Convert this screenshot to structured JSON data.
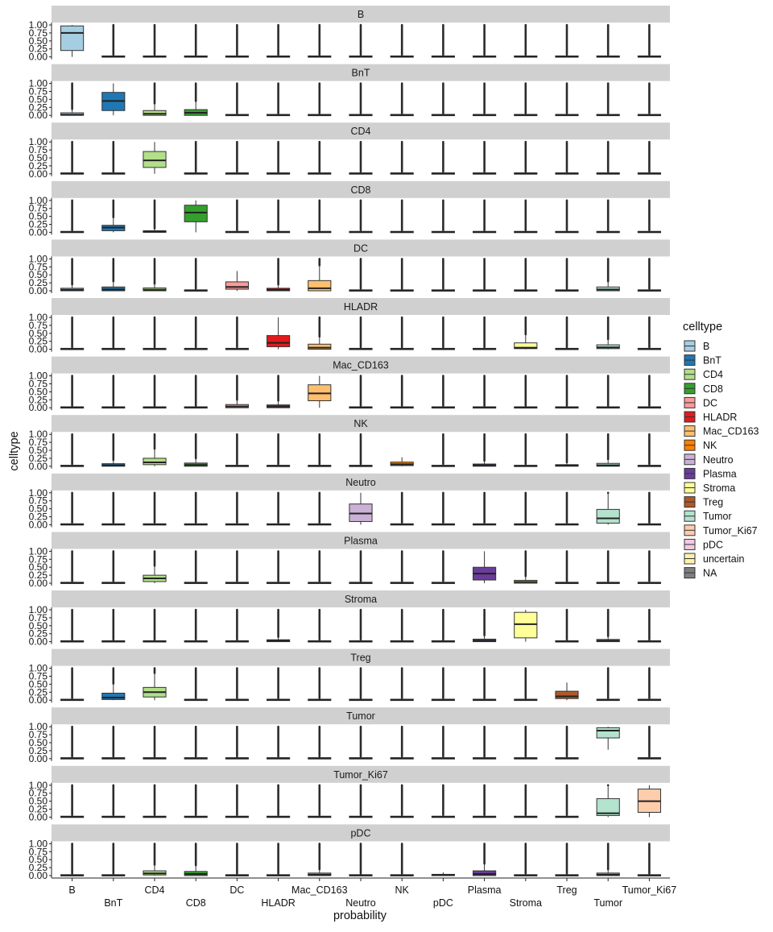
{
  "chart_data": {
    "type": "boxplot",
    "xlabel": "probability",
    "ylabel": "celltype",
    "categories": [
      "B",
      "BnT",
      "CD4",
      "CD8",
      "DC",
      "HLADR",
      "Mac_CD163",
      "Neutro",
      "NK",
      "pDC",
      "Plasma",
      "Stroma",
      "Treg",
      "Tumor",
      "Tumor_Ki67"
    ],
    "yticks": [
      "0.00",
      "0.25",
      "0.50",
      "0.75",
      "1.00"
    ],
    "ylim": [
      0,
      1
    ],
    "legend": {
      "title": "celltype",
      "position": "right",
      "entries": [
        {
          "label": "B",
          "color": "#A6CEE3"
        },
        {
          "label": "BnT",
          "color": "#1F78B4"
        },
        {
          "label": "CD4",
          "color": "#B2DF8A"
        },
        {
          "label": "CD8",
          "color": "#33A02C"
        },
        {
          "label": "DC",
          "color": "#FB9A99"
        },
        {
          "label": "HLADR",
          "color": "#E31A1C"
        },
        {
          "label": "Mac_CD163",
          "color": "#FDBF6F"
        },
        {
          "label": "NK",
          "color": "#FF7F00"
        },
        {
          "label": "Neutro",
          "color": "#CAB2D6"
        },
        {
          "label": "Plasma",
          "color": "#6A3D9A"
        },
        {
          "label": "Stroma",
          "color": "#FFFF99"
        },
        {
          "label": "Treg",
          "color": "#B15928"
        },
        {
          "label": "Tumor",
          "color": "#B3E2CD"
        },
        {
          "label": "Tumor_Ki67",
          "color": "#FDCDAC"
        },
        {
          "label": "pDC",
          "color": "#F4CAE4"
        },
        {
          "label": "uncertain",
          "color": "#FFF2AE"
        },
        {
          "label": "NA",
          "color": "#7F7F7F"
        }
      ]
    },
    "panels": [
      {
        "label": "B",
        "highlight": {
          "category": "B",
          "color": "#A6CEE3",
          "q1": 0.2,
          "median": 0.75,
          "q3": 0.97,
          "wmin": 0.0,
          "wmax": 1.0
        }
      },
      {
        "label": "BnT",
        "highlight": {
          "category": "BnT",
          "color": "#1F78B4",
          "q1": 0.15,
          "median": 0.45,
          "q3": 0.72,
          "wmin": 0.0,
          "wmax": 1.0
        }
      },
      {
        "label": "CD4",
        "highlight": {
          "category": "CD4",
          "color": "#B2DF8A",
          "q1": 0.2,
          "median": 0.42,
          "q3": 0.7,
          "wmin": 0.0,
          "wmax": 1.0
        }
      },
      {
        "label": "CD8",
        "highlight": {
          "category": "CD8",
          "color": "#33A02C",
          "q1": 0.33,
          "median": 0.62,
          "q3": 0.85,
          "wmin": 0.0,
          "wmax": 1.0
        }
      },
      {
        "label": "DC",
        "highlight": {
          "category": "DC",
          "color": "#FB9A99",
          "q1": 0.05,
          "median": 0.12,
          "q3": 0.28,
          "wmin": 0.0,
          "wmax": 0.62
        }
      },
      {
        "label": "HLADR",
        "highlight": {
          "category": "HLADR",
          "color": "#E31A1C",
          "q1": 0.08,
          "median": 0.2,
          "q3": 0.43,
          "wmin": 0.0,
          "wmax": 1.0
        }
      },
      {
        "label": "Mac_CD163",
        "highlight": {
          "category": "Mac_CD163",
          "color": "#FDBF6F",
          "q1": 0.22,
          "median": 0.45,
          "q3": 0.72,
          "wmin": 0.0,
          "wmax": 1.0
        }
      },
      {
        "label": "NK",
        "highlight": {
          "category": "NK",
          "color": "#FF7F00",
          "q1": 0.02,
          "median": 0.06,
          "q3": 0.13,
          "wmin": 0.0,
          "wmax": 0.28
        }
      },
      {
        "label": "Neutro",
        "highlight": {
          "category": "Neutro",
          "color": "#CAB2D6",
          "q1": 0.1,
          "median": 0.35,
          "q3": 0.65,
          "wmin": 0.0,
          "wmax": 1.0
        }
      },
      {
        "label": "Plasma",
        "highlight": {
          "category": "Plasma",
          "color": "#6A3D9A",
          "q1": 0.1,
          "median": 0.3,
          "q3": 0.5,
          "wmin": 0.0,
          "wmax": 1.0
        }
      },
      {
        "label": "Stroma",
        "highlight": {
          "category": "Stroma",
          "color": "#FFFF99",
          "q1": 0.12,
          "median": 0.55,
          "q3": 0.92,
          "wmin": 0.0,
          "wmax": 1.0
        }
      },
      {
        "label": "Treg",
        "highlight": {
          "category": "Treg",
          "color": "#B15928",
          "q1": 0.05,
          "median": 0.12,
          "q3": 0.28,
          "wmin": 0.0,
          "wmax": 0.55
        }
      },
      {
        "label": "Tumor",
        "highlight": {
          "category": "Tumor",
          "color": "#B3E2CD",
          "q1": 0.65,
          "median": 0.88,
          "q3": 0.97,
          "wmin": 0.28,
          "wmax": 1.0
        }
      },
      {
        "label": "Tumor_Ki67",
        "highlight": {
          "category": "Tumor_Ki67",
          "color": "#FDCDAC",
          "q1": 0.15,
          "median": 0.5,
          "q3": 0.88,
          "wmin": 0.0,
          "wmax": 1.0
        }
      },
      {
        "label": "pDC",
        "highlight": {
          "category": "pDC",
          "color": "#F4CAE4",
          "q1": 0.0,
          "median": 0.02,
          "q3": 0.04,
          "wmin": 0.0,
          "wmax": 0.1
        }
      }
    ],
    "extras": [
      {
        "panel": "BnT",
        "category": "B",
        "color": "#A6CEE3",
        "q1": 0.0,
        "median": 0.02,
        "q3": 0.08
      },
      {
        "panel": "BnT",
        "category": "CD4",
        "color": "#B2DF8A",
        "q1": 0.0,
        "median": 0.05,
        "q3": 0.15
      },
      {
        "panel": "BnT",
        "category": "CD8",
        "color": "#33A02C",
        "q1": 0.0,
        "median": 0.08,
        "q3": 0.18
      },
      {
        "panel": "CD8",
        "category": "BnT",
        "color": "#1F78B4",
        "q1": 0.05,
        "median": 0.15,
        "q3": 0.22
      },
      {
        "panel": "CD8",
        "category": "CD4",
        "color": "#B2DF8A",
        "q1": 0.0,
        "median": 0.02,
        "q3": 0.05
      },
      {
        "panel": "DC",
        "category": "B",
        "color": "#A6CEE3",
        "q1": 0.0,
        "median": 0.03,
        "q3": 0.08
      },
      {
        "panel": "DC",
        "category": "BnT",
        "color": "#1F78B4",
        "q1": 0.0,
        "median": 0.04,
        "q3": 0.12
      },
      {
        "panel": "DC",
        "category": "CD4",
        "color": "#B2DF8A",
        "q1": 0.0,
        "median": 0.03,
        "q3": 0.09
      },
      {
        "panel": "DC",
        "category": "HLADR",
        "color": "#E31A1C",
        "q1": 0.0,
        "median": 0.03,
        "q3": 0.08
      },
      {
        "panel": "DC",
        "category": "Mac_CD163",
        "color": "#FDBF6F",
        "q1": 0.0,
        "median": 0.08,
        "q3": 0.32
      },
      {
        "panel": "DC",
        "category": "Tumor",
        "color": "#B3E2CD",
        "q1": 0.0,
        "median": 0.04,
        "q3": 0.12
      },
      {
        "panel": "HLADR",
        "category": "Mac_CD163",
        "color": "#FDBF6F",
        "q1": 0.0,
        "median": 0.05,
        "q3": 0.16
      },
      {
        "panel": "HLADR",
        "category": "Stroma",
        "color": "#FFFF99",
        "q1": 0.02,
        "median": 0.05,
        "q3": 0.2
      },
      {
        "panel": "HLADR",
        "category": "Tumor",
        "color": "#B3E2CD",
        "q1": 0.02,
        "median": 0.06,
        "q3": 0.14
      },
      {
        "panel": "Mac_CD163",
        "category": "DC",
        "color": "#FB9A99",
        "q1": 0.0,
        "median": 0.04,
        "q3": 0.1
      },
      {
        "panel": "Mac_CD163",
        "category": "HLADR",
        "color": "#E31A1C",
        "q1": 0.0,
        "median": 0.04,
        "q3": 0.09
      },
      {
        "panel": "NK",
        "category": "CD4",
        "color": "#B2DF8A",
        "q1": 0.05,
        "median": 0.12,
        "q3": 0.25
      },
      {
        "panel": "NK",
        "category": "CD8",
        "color": "#33A02C",
        "q1": 0.0,
        "median": 0.04,
        "q3": 0.1
      },
      {
        "panel": "NK",
        "category": "BnT",
        "color": "#1F78B4",
        "q1": 0.0,
        "median": 0.03,
        "q3": 0.08
      },
      {
        "panel": "NK",
        "category": "Plasma",
        "color": "#6A3D9A",
        "q1": 0.0,
        "median": 0.03,
        "q3": 0.07
      },
      {
        "panel": "NK",
        "category": "Treg",
        "color": "#B15928",
        "q1": 0.0,
        "median": 0.02,
        "q3": 0.05
      },
      {
        "panel": "NK",
        "category": "Tumor",
        "color": "#B3E2CD",
        "q1": 0.0,
        "median": 0.03,
        "q3": 0.09
      },
      {
        "panel": "Plasma",
        "category": "CD4",
        "color": "#B2DF8A",
        "q1": 0.05,
        "median": 0.15,
        "q3": 0.25
      },
      {
        "panel": "Plasma",
        "category": "Stroma",
        "color": "#FFFF99",
        "q1": 0.0,
        "median": 0.04,
        "q3": 0.09
      },
      {
        "panel": "Stroma",
        "category": "Plasma",
        "color": "#6A3D9A",
        "q1": 0.0,
        "median": 0.03,
        "q3": 0.08
      },
      {
        "panel": "Stroma",
        "category": "HLADR",
        "color": "#E31A1C",
        "q1": 0.0,
        "median": 0.03,
        "q3": 0.06
      },
      {
        "panel": "Stroma",
        "category": "Tumor",
        "color": "#B3E2CD",
        "q1": 0.0,
        "median": 0.03,
        "q3": 0.07
      },
      {
        "panel": "Treg",
        "category": "BnT",
        "color": "#1F78B4",
        "q1": 0.02,
        "median": 0.08,
        "q3": 0.22
      },
      {
        "panel": "Treg",
        "category": "CD4",
        "color": "#B2DF8A",
        "q1": 0.1,
        "median": 0.25,
        "q3": 0.4
      },
      {
        "panel": "Neutro",
        "category": "Tumor",
        "color": "#B3E2CD",
        "q1": 0.05,
        "median": 0.2,
        "q3": 0.48
      },
      {
        "panel": "Tumor_Ki67",
        "category": "Tumor",
        "color": "#B3E2CD",
        "q1": 0.05,
        "median": 0.12,
        "q3": 0.58
      },
      {
        "panel": "pDC",
        "category": "CD4",
        "color": "#B2DF8A",
        "q1": 0.02,
        "median": 0.07,
        "q3": 0.15
      },
      {
        "panel": "pDC",
        "category": "CD8",
        "color": "#33A02C",
        "q1": 0.0,
        "median": 0.05,
        "q3": 0.13
      },
      {
        "panel": "pDC",
        "category": "Mac_CD163",
        "color": "#FDBF6F",
        "q1": 0.0,
        "median": 0.03,
        "q3": 0.08
      },
      {
        "panel": "pDC",
        "category": "Plasma",
        "color": "#6A3D9A",
        "q1": 0.0,
        "median": 0.05,
        "q3": 0.15
      },
      {
        "panel": "pDC",
        "category": "Tumor",
        "color": "#B3E2CD",
        "q1": 0.0,
        "median": 0.03,
        "q3": 0.08
      }
    ],
    "grid": false
  }
}
